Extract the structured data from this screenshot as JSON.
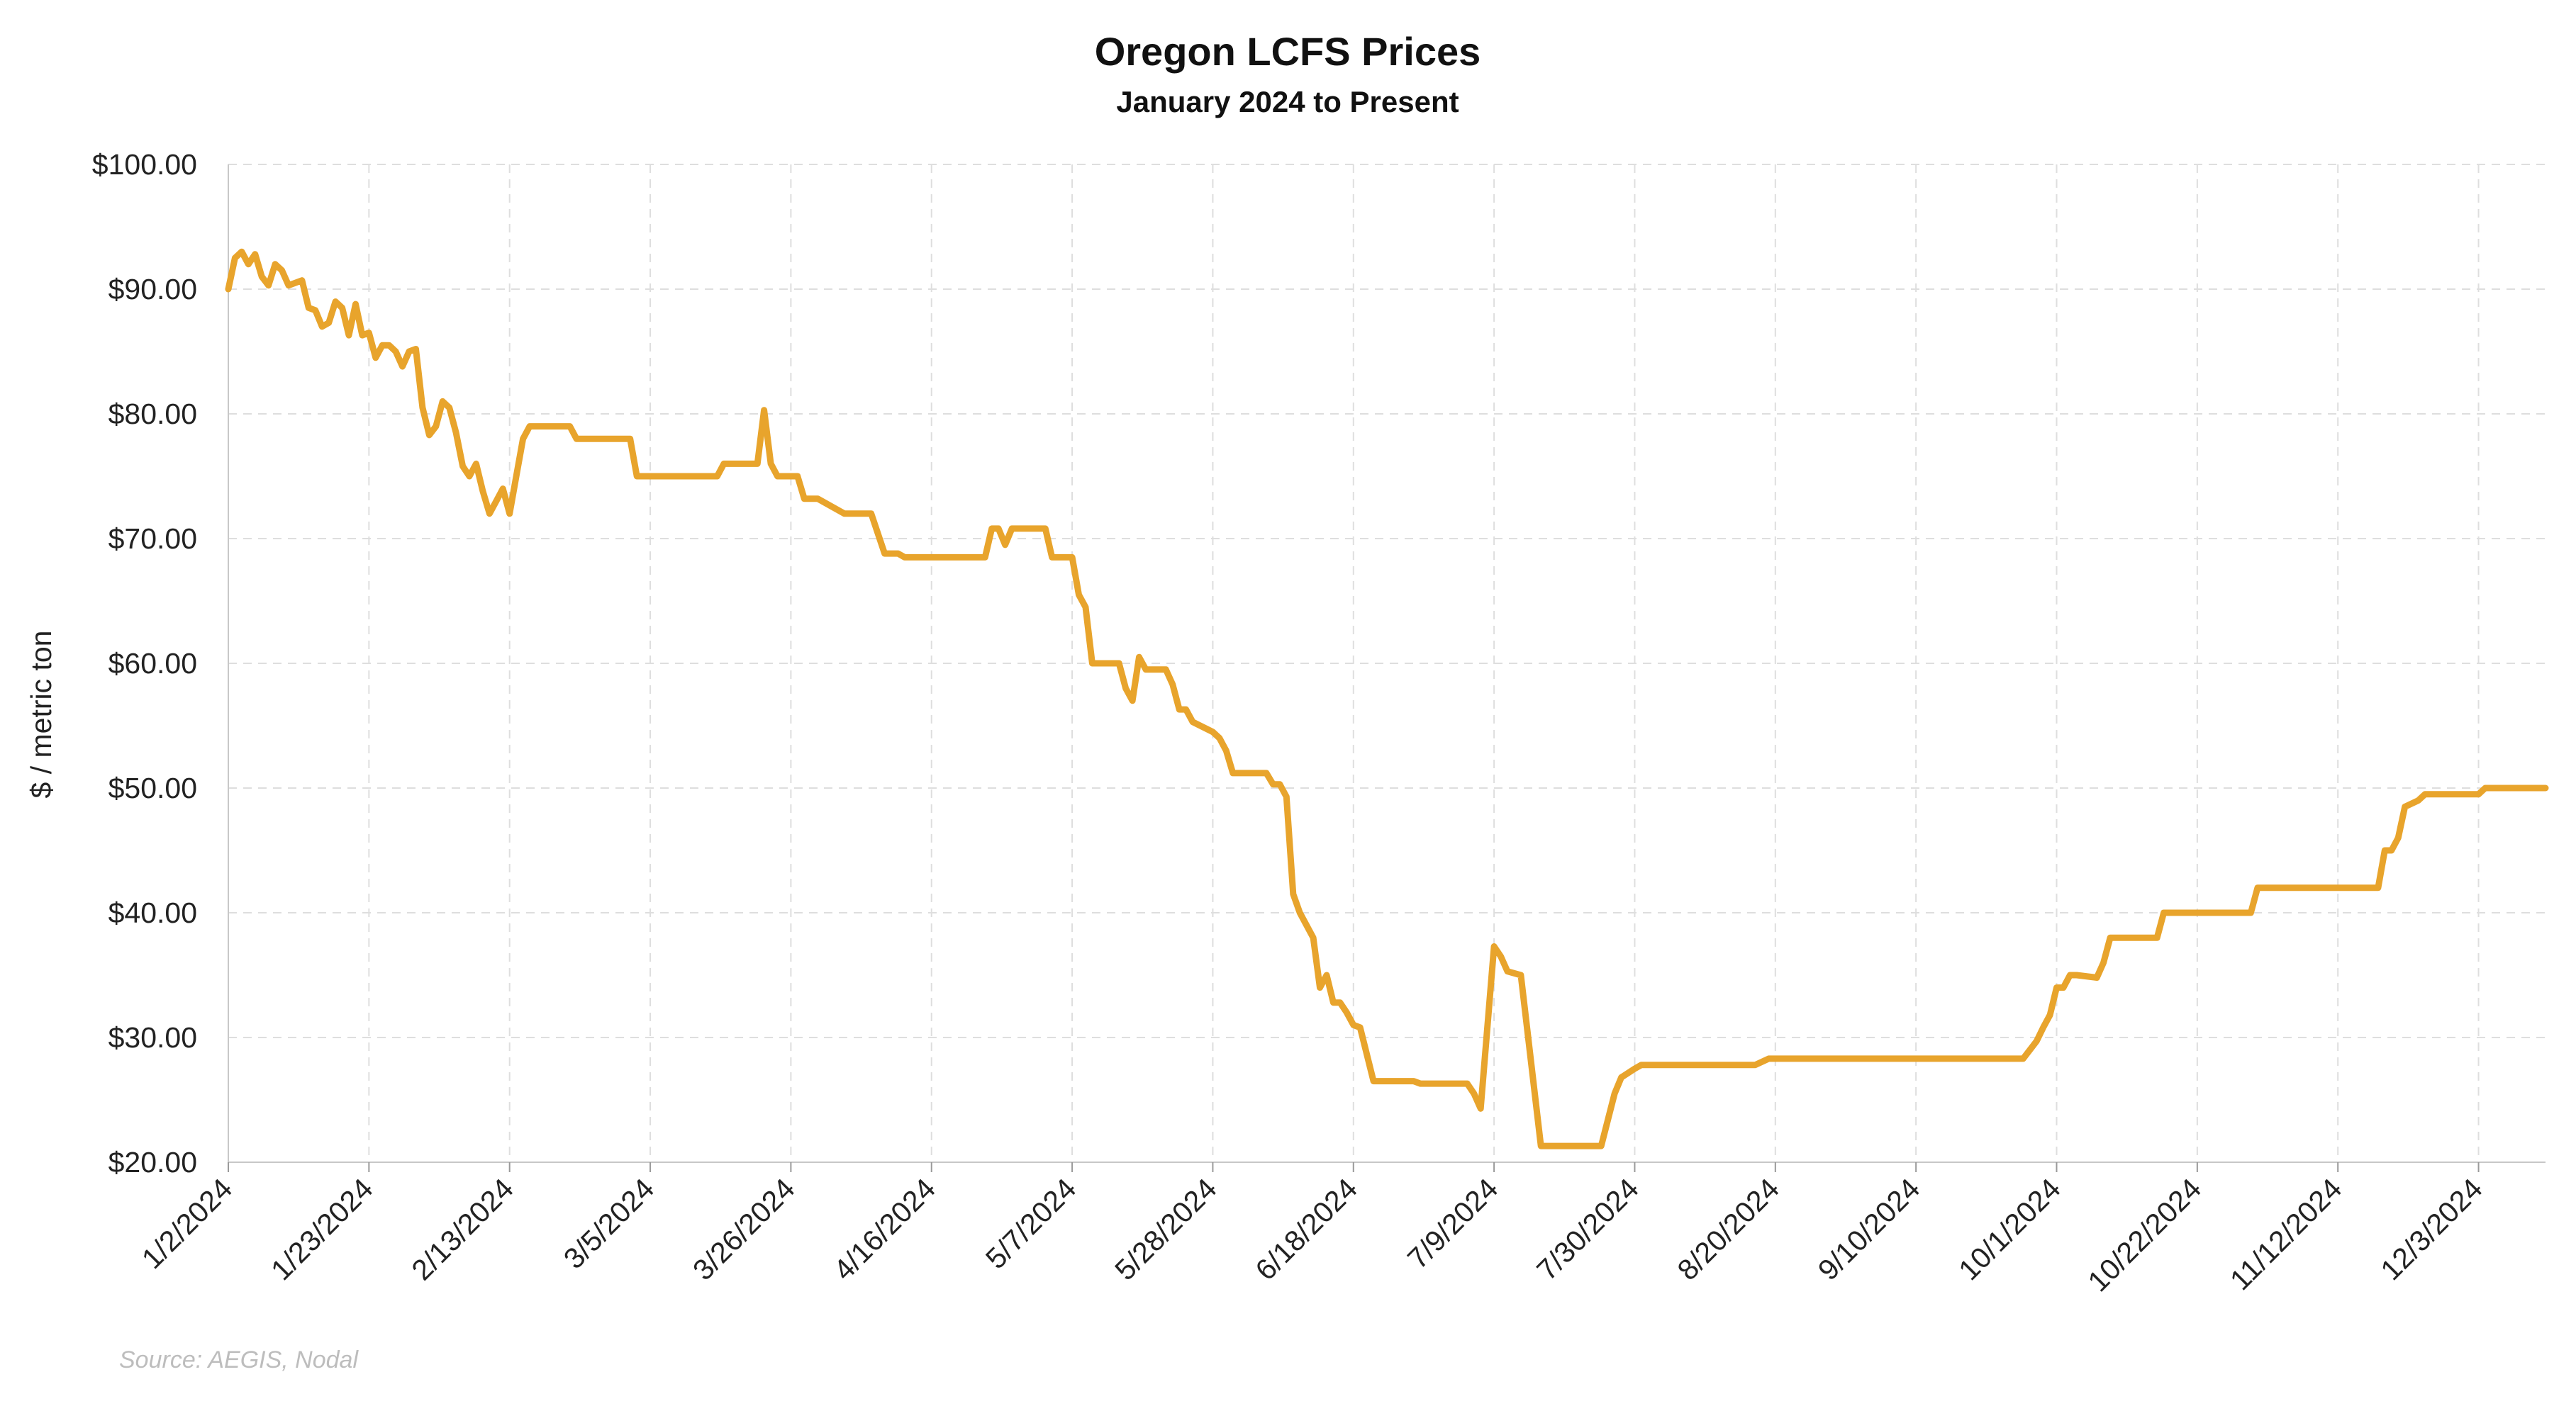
{
  "chart_data": {
    "type": "line",
    "title": "Oregon LCFS Prices",
    "subtitle": "January 2024 to Present",
    "ylabel": "$ / metric ton",
    "xlabel": "",
    "source": "Source: AEGIS, Nodal",
    "x_range": [
      "2024-01-02",
      "2024-12-13"
    ],
    "ylim": [
      20,
      100
    ],
    "y_ticks": [
      20,
      30,
      40,
      50,
      60,
      70,
      80,
      90,
      100
    ],
    "y_tick_labels": [
      "$20.00",
      "$30.00",
      "$40.00",
      "$50.00",
      "$60.00",
      "$70.00",
      "$80.00",
      "$90.00",
      "$100.00"
    ],
    "x_ticks": [
      "2024-01-02",
      "2024-01-23",
      "2024-02-13",
      "2024-03-05",
      "2024-03-26",
      "2024-04-16",
      "2024-05-07",
      "2024-05-28",
      "2024-06-18",
      "2024-07-09",
      "2024-07-30",
      "2024-08-20",
      "2024-09-10",
      "2024-10-01",
      "2024-10-22",
      "2024-11-12",
      "2024-12-03"
    ],
    "x_tick_labels": [
      "1/2/2024",
      "1/23/2024",
      "2/13/2024",
      "3/5/2024",
      "3/26/2024",
      "4/16/2024",
      "5/7/2024",
      "5/28/2024",
      "6/18/2024",
      "7/9/2024",
      "7/30/2024",
      "8/20/2024",
      "9/10/2024",
      "10/1/2024",
      "10/22/2024",
      "11/12/2024",
      "12/3/2024"
    ],
    "grid": true,
    "legend": "none",
    "line_color": "#E8A42C",
    "series": [
      {
        "points": [
          [
            "2024-01-02",
            90.0
          ],
          [
            "2024-01-03",
            92.5
          ],
          [
            "2024-01-04",
            93.0
          ],
          [
            "2024-01-05",
            92.0
          ],
          [
            "2024-01-06",
            92.8
          ],
          [
            "2024-01-07",
            91.0
          ],
          [
            "2024-01-08",
            90.3
          ],
          [
            "2024-01-09",
            92.0
          ],
          [
            "2024-01-10",
            91.5
          ],
          [
            "2024-01-11",
            90.3
          ],
          [
            "2024-01-13",
            90.7
          ],
          [
            "2024-01-14",
            88.5
          ],
          [
            "2024-01-15",
            88.3
          ],
          [
            "2024-01-16",
            87.0
          ],
          [
            "2024-01-17",
            87.3
          ],
          [
            "2024-01-18",
            89.0
          ],
          [
            "2024-01-19",
            88.5
          ],
          [
            "2024-01-20",
            86.3
          ],
          [
            "2024-01-21",
            88.8
          ],
          [
            "2024-01-22",
            86.3
          ],
          [
            "2024-01-23",
            86.5
          ],
          [
            "2024-01-24",
            84.5
          ],
          [
            "2024-01-25",
            85.5
          ],
          [
            "2024-01-26",
            85.5
          ],
          [
            "2024-01-27",
            85.0
          ],
          [
            "2024-01-28",
            83.8
          ],
          [
            "2024-01-29",
            85.0
          ],
          [
            "2024-01-30",
            85.2
          ],
          [
            "2024-01-31",
            80.5
          ],
          [
            "2024-02-01",
            78.3
          ],
          [
            "2024-02-02",
            79.0
          ],
          [
            "2024-02-03",
            81.0
          ],
          [
            "2024-02-04",
            80.5
          ],
          [
            "2024-02-05",
            78.5
          ],
          [
            "2024-02-06",
            75.8
          ],
          [
            "2024-02-07",
            75.0
          ],
          [
            "2024-02-08",
            76.0
          ],
          [
            "2024-02-09",
            73.8
          ],
          [
            "2024-02-10",
            72.0
          ],
          [
            "2024-02-11",
            73.0
          ],
          [
            "2024-02-12",
            74.0
          ],
          [
            "2024-02-13",
            72.0
          ],
          [
            "2024-02-14",
            75.0
          ],
          [
            "2024-02-15",
            78.0
          ],
          [
            "2024-02-16",
            79.0
          ],
          [
            "2024-02-22",
            79.0
          ],
          [
            "2024-02-23",
            78.0
          ],
          [
            "2024-03-02",
            78.0
          ],
          [
            "2024-03-03",
            75.0
          ],
          [
            "2024-03-15",
            75.0
          ],
          [
            "2024-03-16",
            76.0
          ],
          [
            "2024-03-21",
            76.0
          ],
          [
            "2024-03-22",
            80.3
          ],
          [
            "2024-03-23",
            76.0
          ],
          [
            "2024-03-24",
            75.0
          ],
          [
            "2024-03-27",
            75.0
          ],
          [
            "2024-03-28",
            73.2
          ],
          [
            "2024-03-30",
            73.2
          ],
          [
            "2024-04-03",
            72.0
          ],
          [
            "2024-04-07",
            72.0
          ],
          [
            "2024-04-09",
            68.8
          ],
          [
            "2024-04-11",
            68.8
          ],
          [
            "2024-04-12",
            68.5
          ],
          [
            "2024-04-24",
            68.5
          ],
          [
            "2024-04-25",
            70.8
          ],
          [
            "2024-04-26",
            70.8
          ],
          [
            "2024-04-27",
            69.5
          ],
          [
            "2024-04-28",
            70.8
          ],
          [
            "2024-05-03",
            70.8
          ],
          [
            "2024-05-04",
            68.5
          ],
          [
            "2024-05-07",
            68.5
          ],
          [
            "2024-05-08",
            65.5
          ],
          [
            "2024-05-09",
            64.5
          ],
          [
            "2024-05-10",
            60.0
          ],
          [
            "2024-05-14",
            60.0
          ],
          [
            "2024-05-15",
            58.0
          ],
          [
            "2024-05-16",
            57.0
          ],
          [
            "2024-05-17",
            60.5
          ],
          [
            "2024-05-18",
            59.5
          ],
          [
            "2024-05-21",
            59.5
          ],
          [
            "2024-05-22",
            58.3
          ],
          [
            "2024-05-23",
            56.3
          ],
          [
            "2024-05-24",
            56.3
          ],
          [
            "2024-05-25",
            55.3
          ],
          [
            "2024-05-28",
            54.5
          ],
          [
            "2024-05-29",
            54.0
          ],
          [
            "2024-05-30",
            53.0
          ],
          [
            "2024-05-31",
            51.2
          ],
          [
            "2024-06-05",
            51.2
          ],
          [
            "2024-06-06",
            50.3
          ],
          [
            "2024-06-07",
            50.3
          ],
          [
            "2024-06-08",
            49.3
          ],
          [
            "2024-06-09",
            41.5
          ],
          [
            "2024-06-10",
            40.0
          ],
          [
            "2024-06-12",
            38.0
          ],
          [
            "2024-06-13",
            34.0
          ],
          [
            "2024-06-14",
            35.0
          ],
          [
            "2024-06-15",
            32.8
          ],
          [
            "2024-06-16",
            32.8
          ],
          [
            "2024-06-17",
            32.0
          ],
          [
            "2024-06-18",
            31.0
          ],
          [
            "2024-06-19",
            30.8
          ],
          [
            "2024-06-21",
            26.5
          ],
          [
            "2024-06-27",
            26.5
          ],
          [
            "2024-06-28",
            26.3
          ],
          [
            "2024-07-05",
            26.3
          ],
          [
            "2024-07-06",
            25.5
          ],
          [
            "2024-07-07",
            24.3
          ],
          [
            "2024-07-09",
            37.3
          ],
          [
            "2024-07-10",
            36.5
          ],
          [
            "2024-07-11",
            35.3
          ],
          [
            "2024-07-13",
            35.0
          ],
          [
            "2024-07-16",
            21.3
          ],
          [
            "2024-07-25",
            21.3
          ],
          [
            "2024-07-27",
            25.5
          ],
          [
            "2024-07-28",
            26.8
          ],
          [
            "2024-07-30",
            27.5
          ],
          [
            "2024-07-31",
            27.8
          ],
          [
            "2024-08-16",
            27.8
          ],
          [
            "2024-08-17",
            27.8
          ],
          [
            "2024-08-19",
            28.3
          ],
          [
            "2024-09-26",
            28.3
          ],
          [
            "2024-09-27",
            29.0
          ],
          [
            "2024-09-28",
            29.7
          ],
          [
            "2024-09-29",
            30.8
          ],
          [
            "2024-09-30",
            31.8
          ],
          [
            "2024-10-01",
            34.0
          ],
          [
            "2024-10-02",
            34.0
          ],
          [
            "2024-10-03",
            35.0
          ],
          [
            "2024-10-04",
            35.0
          ],
          [
            "2024-10-07",
            34.8
          ],
          [
            "2024-10-08",
            36.0
          ],
          [
            "2024-10-09",
            38.0
          ],
          [
            "2024-10-16",
            38.0
          ],
          [
            "2024-10-17",
            40.0
          ],
          [
            "2024-10-30",
            40.0
          ],
          [
            "2024-10-31",
            42.0
          ],
          [
            "2024-11-18",
            42.0
          ],
          [
            "2024-11-19",
            45.0
          ],
          [
            "2024-11-20",
            45.0
          ],
          [
            "2024-11-21",
            46.0
          ],
          [
            "2024-11-22",
            48.5
          ],
          [
            "2024-11-24",
            49.0
          ],
          [
            "2024-11-25",
            49.5
          ],
          [
            "2024-12-03",
            49.5
          ],
          [
            "2024-12-04",
            50.0
          ],
          [
            "2024-12-13",
            50.0
          ]
        ]
      }
    ]
  }
}
